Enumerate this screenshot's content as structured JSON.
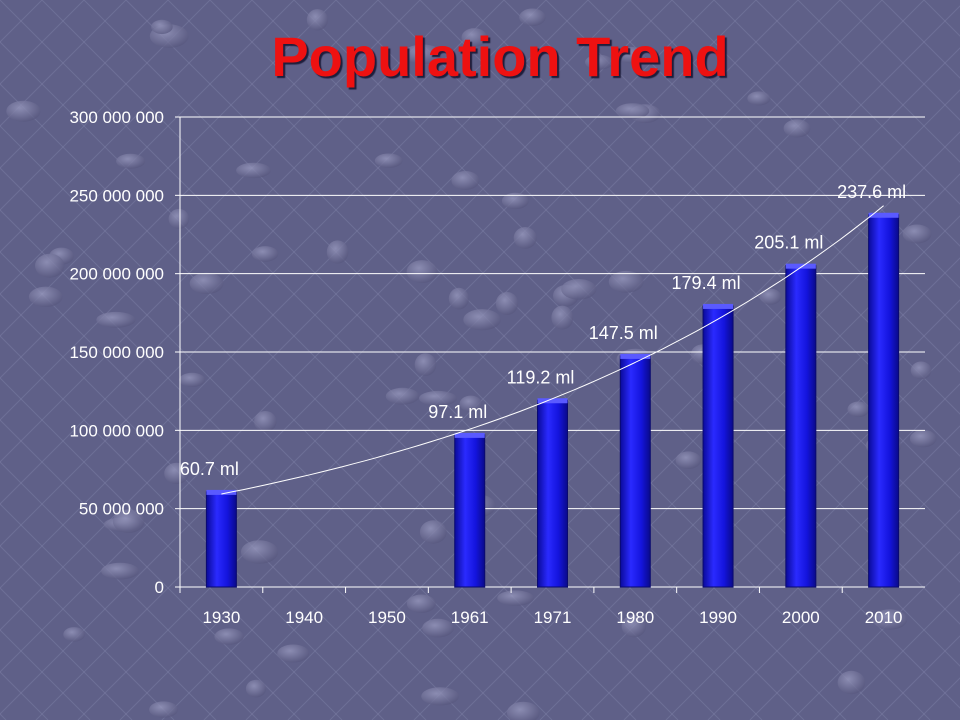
{
  "title": "Population Trend",
  "chart_data": {
    "type": "bar",
    "title": "Population Trend",
    "xlabel": "",
    "ylabel": "",
    "categories": [
      "1930",
      "1940",
      "1950",
      "1961",
      "1971",
      "1980",
      "1990",
      "2000",
      "2010"
    ],
    "values": [
      60700000,
      null,
      null,
      97100000,
      119200000,
      147500000,
      179400000,
      205100000,
      237600000
    ],
    "data_labels": [
      "60.7 ml",
      "",
      "",
      "97.1 ml",
      "119.2 ml",
      "147.5 ml",
      "179.4 ml",
      "205.1 ml",
      "237.6 ml"
    ],
    "ylim": [
      0,
      300000000
    ],
    "yticks": [
      0,
      50000000,
      100000000,
      150000000,
      200000000,
      250000000,
      300000000
    ],
    "ytick_labels": [
      "0",
      "50 000 000",
      "100 000 000",
      "150 000 000",
      "200 000 000",
      "250 000 000",
      "300 000 000"
    ],
    "grid": true,
    "trendline": "exponential",
    "bar_color": "#1a1aee",
    "background_color": "#5f6088",
    "title_color": "#ee1111"
  }
}
